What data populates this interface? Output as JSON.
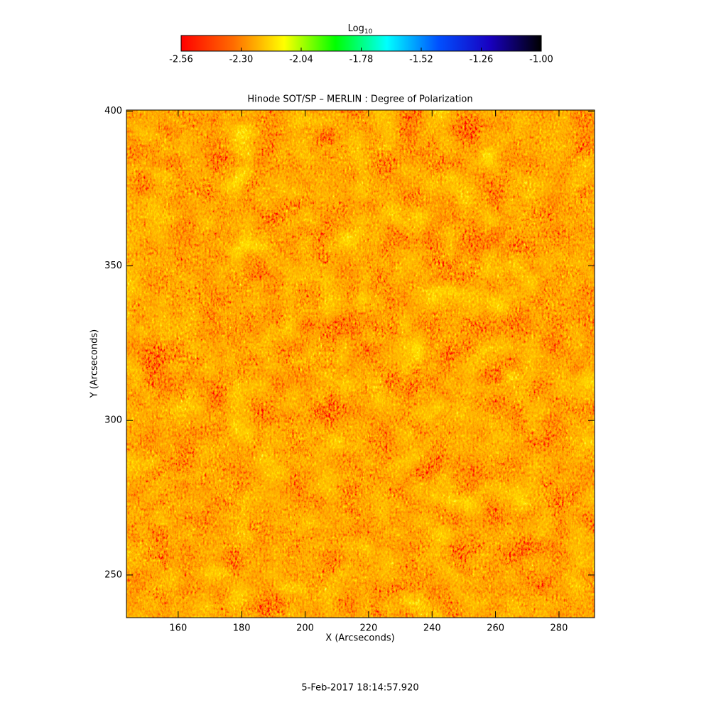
{
  "chart_data": {
    "type": "image",
    "title": "Hinode SOT/SP – MERLIN : Degree of Polarization",
    "xlabel": "X (Arcseconds)",
    "ylabel": "Y (Arcseconds)",
    "xlim": [
      143.7,
      291.2
    ],
    "ylim": [
      236.2,
      400.4
    ],
    "xticks": [
      160,
      180,
      200,
      220,
      240,
      260,
      280
    ],
    "yticks": [
      250,
      300,
      350,
      400
    ],
    "colorbar": {
      "label_base": "Log",
      "label_subscript": "10",
      "lim": [
        -2.56,
        -1.0
      ],
      "ticks": [
        -2.56,
        {
          "value": -2.3,
          "label": "-2.30"
        },
        -2.04,
        -1.78,
        -1.52,
        -1.26,
        {
          "value": -1.0,
          "label": "-1.00"
        }
      ],
      "colormap": [
        "#ff0000",
        "#ff6a00",
        "#ffff00",
        "#00ff00",
        "#00ffff",
        "#0050ff",
        "#1800c0",
        "#000000"
      ]
    },
    "footer": "5-Feb-2017 18:14:57.920"
  }
}
